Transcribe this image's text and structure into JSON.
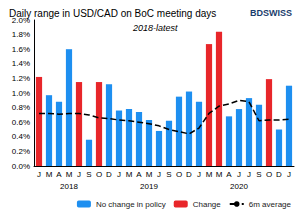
{
  "chart_data": {
    "type": "bar",
    "title": "Daily range in USD/CAD on BoC meeting days",
    "subtitle": "2018-latest",
    "source": "BDSWISS",
    "categories": [
      "J",
      "M",
      "A",
      "M",
      "J",
      "S",
      "O",
      "D",
      "J",
      "M",
      "A",
      "M",
      "J",
      "S",
      "O",
      "D",
      "J",
      "M",
      "M",
      "A",
      "J",
      "J",
      "S",
      "O",
      "D",
      "J"
    ],
    "years": [
      null,
      null,
      null,
      "2018",
      null,
      null,
      null,
      null,
      null,
      null,
      null,
      "2019",
      null,
      null,
      null,
      null,
      null,
      null,
      null,
      null,
      "2020",
      null,
      null,
      null,
      null,
      null
    ],
    "series": [
      {
        "name": "No change in policy",
        "type": "bar",
        "color": "#1e8ff0",
        "values": [
          null,
          0.97,
          0.88,
          1.6,
          null,
          0.36,
          null,
          1.12,
          0.76,
          0.78,
          0.74,
          0.63,
          0.48,
          0.62,
          0.95,
          1.02,
          0.88,
          null,
          null,
          0.68,
          0.78,
          0.93,
          0.84,
          null,
          0.5,
          1.1
        ]
      },
      {
        "name": "Change",
        "type": "bar",
        "color": "#e8262a",
        "values": [
          1.22,
          null,
          null,
          null,
          1.15,
          null,
          1.15,
          null,
          null,
          null,
          null,
          null,
          null,
          null,
          null,
          null,
          null,
          1.67,
          1.84,
          null,
          null,
          null,
          null,
          1.19,
          null,
          null
        ]
      },
      {
        "name": "6m average",
        "type": "line",
        "color": "#000000",
        "line_style": "dashed",
        "values": [
          0.72,
          0.72,
          0.71,
          0.72,
          0.72,
          0.7,
          0.66,
          0.65,
          0.63,
          0.62,
          0.6,
          0.58,
          0.55,
          0.5,
          0.47,
          0.44,
          0.52,
          0.72,
          0.82,
          0.85,
          0.9,
          0.88,
          0.62,
          0.63,
          0.63,
          0.64
        ]
      }
    ],
    "ylim": [
      0,
      2
    ],
    "yticks": [
      {
        "value": 0,
        "label": "0.0%"
      },
      {
        "value": 0.2,
        "label": "0.2%"
      },
      {
        "value": 0.4,
        "label": "0.4%"
      },
      {
        "value": 0.6,
        "label": "0.6%"
      },
      {
        "value": 0.8,
        "label": "0.8%"
      },
      {
        "value": 1.0,
        "label": "1.0%"
      },
      {
        "value": 1.2,
        "label": "1.2%"
      },
      {
        "value": 1.4,
        "label": "1.4%"
      },
      {
        "value": 1.6,
        "label": "1.6%"
      },
      {
        "value": 1.8,
        "label": "1.8%"
      },
      {
        "value": 2.0,
        "label": "2.0%"
      }
    ],
    "grid": false,
    "legend": "bottom"
  }
}
